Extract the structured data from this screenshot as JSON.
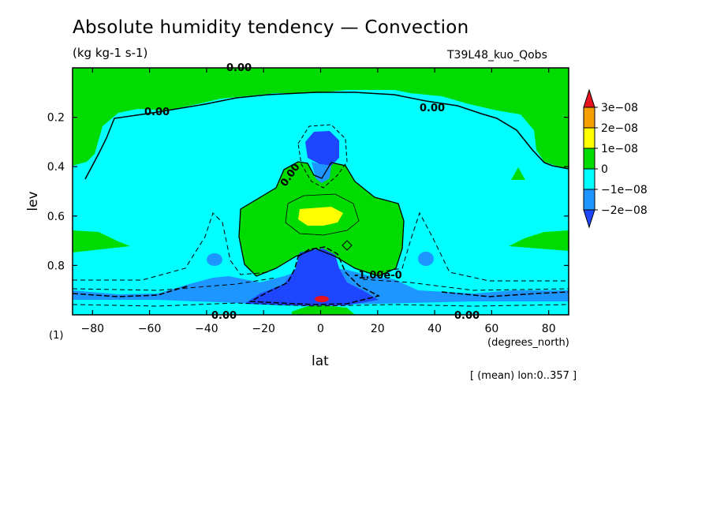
{
  "header": {
    "title": "Absolute humidity tendency — Convection",
    "units": "(kg kg-1 s-1)",
    "run_id": "T39L48_kuo_Qobs",
    "averaging_note": "[ (mean) lon:0..357 ]",
    "frame_index": "(1)"
  },
  "chart_data": {
    "type": "heatmap",
    "xlabel": "lat",
    "xunits": "(degrees_north)",
    "ylabel": "lev",
    "xlim": [
      -87,
      87
    ],
    "ylim": [
      1.0,
      0.0
    ],
    "x_ticks": [
      -80,
      -60,
      -40,
      -20,
      0,
      20,
      40,
      60,
      80
    ],
    "x_tick_labels": [
      "−80",
      "−60",
      "−40",
      "−20",
      "0",
      "20",
      "40",
      "60",
      "80"
    ],
    "y_ticks": [
      0.2,
      0.4,
      0.6,
      0.8
    ],
    "y_tick_labels": [
      "0.2",
      "0.4",
      "0.6",
      "0.8"
    ],
    "grid": false,
    "colorbar": {
      "placement": "right",
      "levels": [
        "3e−08",
        "2e−08",
        "1e−08",
        "0",
        "−1e−08",
        "−2e−08"
      ],
      "colors": [
        "#e8131f",
        "#f5a000",
        "#ffff00",
        "#00dc00",
        "#00ffff",
        "#1e96ff",
        "#1e46ff"
      ]
    },
    "contour_labels": [
      {
        "text": "0.00",
        "lat": -55,
        "lev": 0.18
      },
      {
        "text": "0.00",
        "lat": 40,
        "lev": 0.16
      },
      {
        "text": "0.00",
        "lat": -29,
        "lev": 0.0
      },
      {
        "text": "0.00",
        "lat": -10,
        "lev": 0.42
      },
      {
        "text": "-1.00e-0",
        "lat": 22,
        "lev": 0.85
      },
      {
        "text": "0.00",
        "lat": -35,
        "lev": 1.0
      },
      {
        "text": "0.00",
        "lat": 52,
        "lev": 1.0
      }
    ],
    "colors": {
      "background": "#00ffff",
      "upper_green": "#00dc00",
      "mid_green": "#00dc00",
      "yellow": "#ffff00",
      "light_blue": "#1e96ff",
      "dark_blue": "#1e46ff",
      "red": "#e8131f"
    }
  }
}
